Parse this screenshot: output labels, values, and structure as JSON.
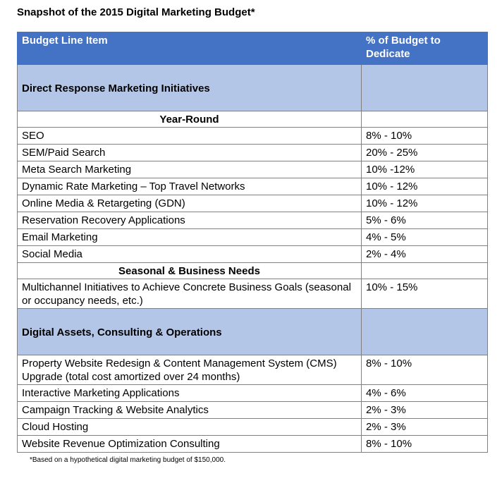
{
  "title": "Snapshot of the 2015 Digital Marketing Budget*",
  "table": {
    "header": [
      "Budget Line Item",
      "% of Budget to Dedicate"
    ],
    "sections": [
      {
        "title": "Direct Response Marketing Initiatives",
        "groups": [
          {
            "title": "Year-Round",
            "rows": [
              [
                "SEO",
                "8% - 10%"
              ],
              [
                "SEM/Paid Search",
                "20% - 25%"
              ],
              [
                "Meta Search Marketing",
                "10% -12%"
              ],
              [
                "Dynamic Rate Marketing – Top Travel Networks",
                "10% - 12%"
              ],
              [
                "Online Media & Retargeting (GDN)",
                "10% - 12%"
              ],
              [
                "Reservation Recovery Applications",
                "5% - 6%"
              ],
              [
                "Email Marketing",
                "4% - 5%"
              ],
              [
                "Social Media",
                "2% - 4%"
              ]
            ]
          },
          {
            "title": "Seasonal & Business Needs",
            "rows": [
              [
                "Multichannel Initiatives to Achieve Concrete Business Goals (seasonal or occupancy needs, etc.)",
                "10% - 15%"
              ]
            ]
          }
        ]
      },
      {
        "title": "Digital Assets, Consulting & Operations",
        "rows": [
          [
            "Property Website Redesign & Content Management System (CMS) Upgrade (total cost amortized over 24 months)",
            "8% - 10%"
          ],
          [
            "Interactive Marketing Applications",
            "4% - 6%"
          ],
          [
            "Campaign Tracking & Website Analytics",
            "2% - 3%"
          ],
          [
            "Cloud Hosting",
            "2% - 3%"
          ],
          [
            "Website Revenue Optimization Consulting",
            "8% - 10%"
          ]
        ]
      }
    ]
  },
  "footnote": "*Based on a hypothetical digital marketing budget of $150,000."
}
